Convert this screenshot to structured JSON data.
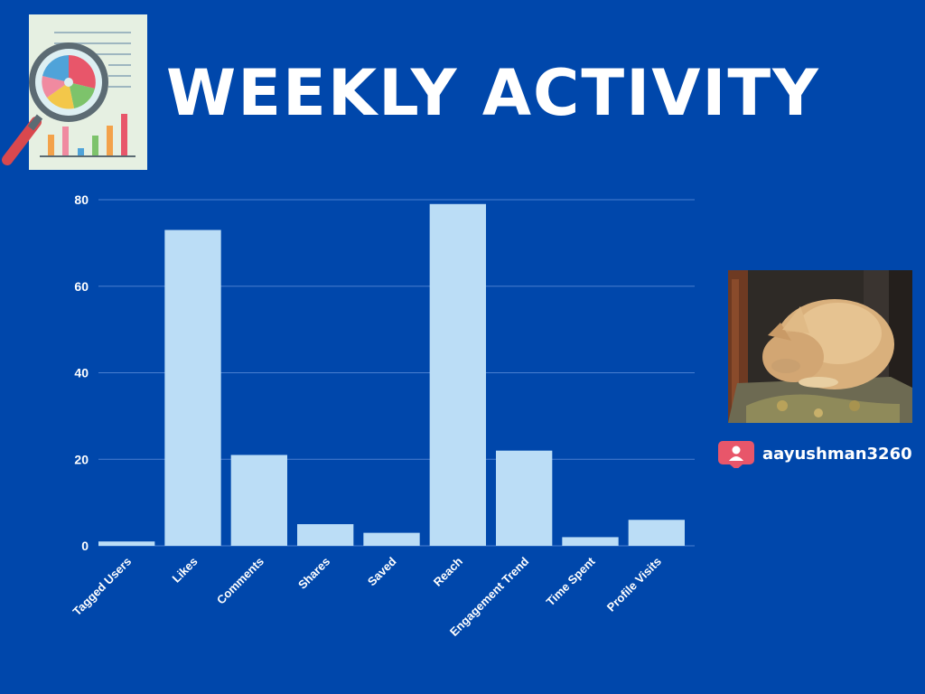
{
  "title": "WEEKLY ACTIVITY",
  "username": "aayushman3260",
  "icons": {
    "logo": "report-magnifier-icon",
    "user": "user-icon"
  },
  "colors": {
    "background": "#0047AB",
    "bar": "#BBDDF6",
    "text": "#ffffff",
    "badge": "#E8566A"
  },
  "chart_data": {
    "type": "bar",
    "categories": [
      "Tagged Users",
      "Likes",
      "Comments",
      "Shares",
      "Saved",
      "Reach",
      "Engagement Trend",
      "Time Spent",
      "Profile Visits"
    ],
    "values": [
      1,
      73,
      21,
      5,
      3,
      79,
      22,
      2,
      6
    ],
    "title": "",
    "xlabel": "",
    "ylabel": "",
    "ylim": [
      0,
      80
    ],
    "yticks": [
      0,
      20,
      40,
      60,
      80
    ],
    "grid": true,
    "legend": false
  }
}
